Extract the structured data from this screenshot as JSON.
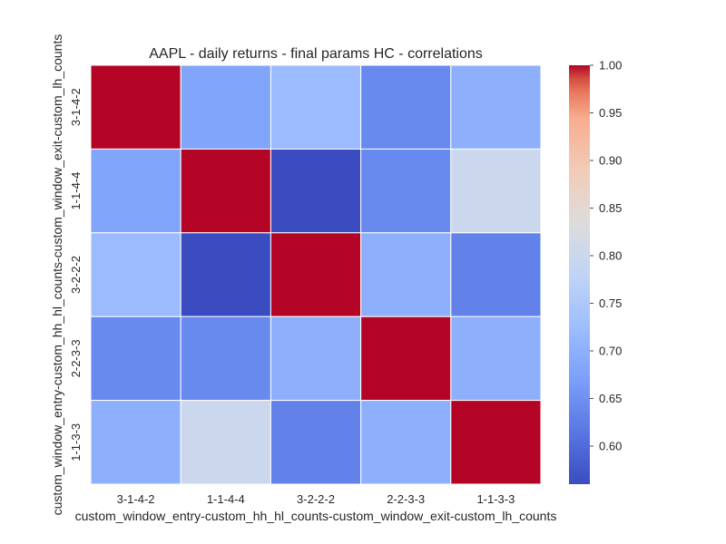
{
  "chart_data": {
    "type": "heatmap",
    "title": "AAPL - daily returns - final params HC - correlations",
    "xlabel": "custom_window_entry-custom_hh_hl_counts-custom_window_exit-custom_lh_counts",
    "ylabel": "custom_window_entry-custom_hh_hl_counts-custom_window_exit-custom_lh_counts",
    "x_categories": [
      "3-1-4-2",
      "1-1-4-4",
      "3-2-2-2",
      "2-2-3-3",
      "1-1-3-3"
    ],
    "y_categories": [
      "3-1-4-2",
      "1-1-4-4",
      "3-2-2-2",
      "2-2-3-3",
      "1-1-3-3"
    ],
    "values": [
      [
        1.0,
        0.68,
        0.72,
        0.64,
        0.7
      ],
      [
        0.68,
        1.0,
        0.56,
        0.64,
        0.8
      ],
      [
        0.72,
        0.56,
        1.0,
        0.7,
        0.63
      ],
      [
        0.64,
        0.64,
        0.7,
        1.0,
        0.7
      ],
      [
        0.7,
        0.8,
        0.63,
        0.7,
        1.0
      ]
    ],
    "colorbar": {
      "colormap": "coolwarm",
      "vmin": 0.56,
      "vmax": 1.0,
      "ticks": [
        "0.60",
        "0.65",
        "0.70",
        "0.75",
        "0.80",
        "0.85",
        "0.90",
        "0.95",
        "1.00"
      ]
    }
  }
}
